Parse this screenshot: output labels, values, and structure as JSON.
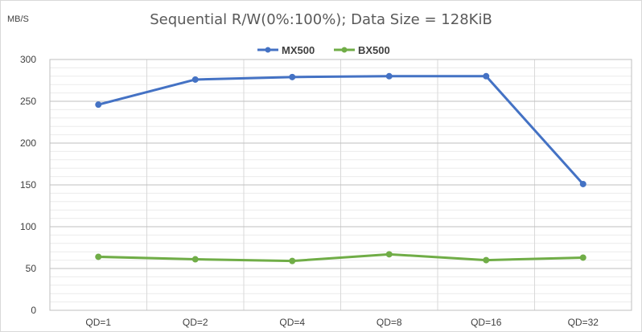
{
  "chart_data": {
    "type": "line",
    "title": "Sequential R/W(0%:100%); Data Size = 128KiB",
    "ylabel": "MB/S",
    "xlabel": "",
    "categories": [
      "QD=1",
      "QD=2",
      "QD=4",
      "QD=8",
      "QD=16",
      "QD=32"
    ],
    "ylim": [
      0,
      300
    ],
    "yticks": [
      0,
      50,
      100,
      150,
      200,
      250,
      300
    ],
    "grid": true,
    "legend_position": "top-center",
    "series": [
      {
        "name": "MX500",
        "color": "#4472c4",
        "values": [
          246,
          276,
          279,
          280,
          280,
          151
        ]
      },
      {
        "name": "BX500",
        "color": "#70ad47",
        "values": [
          64,
          61,
          59,
          67,
          60,
          63
        ]
      }
    ]
  }
}
